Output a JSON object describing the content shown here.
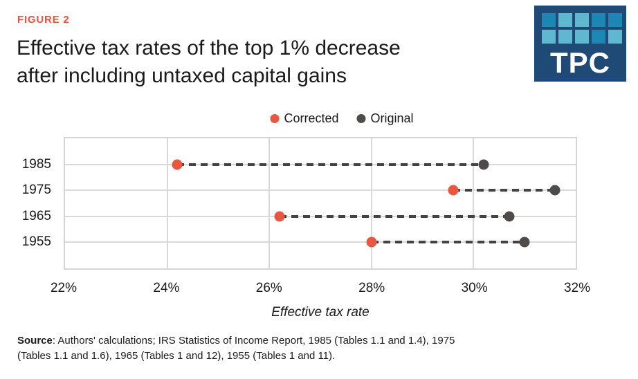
{
  "figure_label": "FIGURE 2",
  "title_line1": "Effective tax rates of the top 1% decrease",
  "title_line2": "after including untaxed capital gains",
  "logo": {
    "text": "TPC",
    "bg_color": "#1e4a75",
    "square_colors": {
      "m": "#1b87b2",
      "l": "#60b8d0"
    },
    "squares": [
      [
        "m",
        "l",
        "l",
        "m",
        "m"
      ],
      [
        "l",
        "l",
        "l",
        "m",
        "l"
      ]
    ]
  },
  "legend": [
    {
      "label": "Corrected",
      "color": "#e8573f"
    },
    {
      "label": "Original",
      "color": "#4f4b4a"
    }
  ],
  "chart_data": {
    "type": "scatter",
    "subtype": "dumbbell-dot-plot",
    "categories": [
      "1985",
      "1975",
      "1965",
      "1955"
    ],
    "series": [
      {
        "name": "Corrected",
        "color": "#e8573f",
        "values": [
          24.2,
          29.6,
          26.2,
          28.0
        ]
      },
      {
        "name": "Original",
        "color": "#4f4b4a",
        "values": [
          30.2,
          31.6,
          30.7,
          31.0
        ]
      }
    ],
    "title": "Effective tax rates of the top 1% decrease after including untaxed capital gains",
    "xlabel": "Effective tax rate",
    "ylabel": "",
    "xlim": [
      22,
      32
    ],
    "xticks": [
      22,
      24,
      26,
      28,
      30,
      32
    ],
    "xtick_labels": [
      "22%",
      "24%",
      "26%",
      "28%",
      "30%",
      "32%"
    ],
    "grid": true,
    "connector_style": "dashed",
    "connector_color": "#454242",
    "legend_position": "top-center"
  },
  "source": {
    "label": "Source",
    "line1": ": Authors' calculations; IRS Statistics of Income Report, 1985 (Tables 1.1 and 1.4), 1975",
    "line2": "(Tables 1.1 and 1.6), 1965 (Tables 1 and 12), 1955 (Tables 1 and 11)."
  },
  "colors": {
    "accent": "#e8543c",
    "grid": "#d9d9d9",
    "text": "#1a1a1a"
  }
}
